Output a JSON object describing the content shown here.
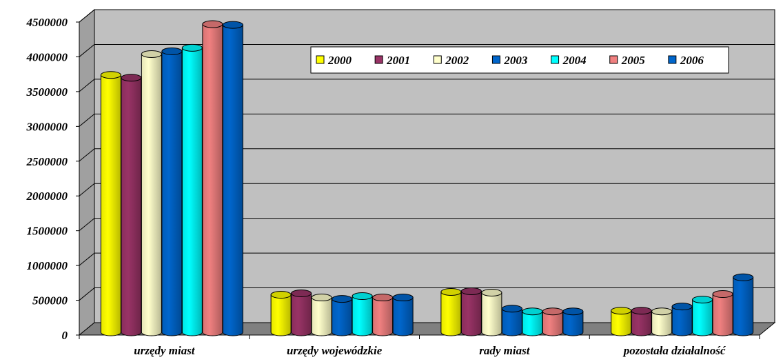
{
  "chart_data": {
    "type": "bar",
    "style": "3d-cylinder",
    "categories": [
      "urzędy miast",
      "urzędy wojewódzkie",
      "rady miast",
      "pozostała działalność"
    ],
    "series": [
      {
        "name": "2000",
        "color": "#FFFF00",
        "values": [
          3700000,
          540000,
          580000,
          310000
        ]
      },
      {
        "name": "2001",
        "color": "#993366",
        "values": [
          3660000,
          560000,
          590000,
          310000
        ]
      },
      {
        "name": "2002",
        "color": "#FFFFCC",
        "values": [
          4000000,
          500000,
          570000,
          300000
        ]
      },
      {
        "name": "2003",
        "color": "#0066CC",
        "values": [
          4040000,
          480000,
          340000,
          370000
        ]
      },
      {
        "name": "2004",
        "color": "#00FFFF",
        "values": [
          4090000,
          520000,
          300000,
          470000
        ]
      },
      {
        "name": "2005",
        "color": "#F08080",
        "values": [
          4430000,
          500000,
          300000,
          550000
        ]
      },
      {
        "name": "2006",
        "color": "#0066CC",
        "values": [
          4420000,
          500000,
          300000,
          790000
        ]
      }
    ],
    "y_ticks": [
      "0",
      "500000",
      "1000000",
      "1500000",
      "2000000",
      "2500000",
      "3000000",
      "3500000",
      "4000000",
      "4500000"
    ],
    "ylim": [
      0,
      4500000
    ],
    "grid": true,
    "legend": "top-right-inside",
    "colors": {
      "wall": "#C0C0C0",
      "floor": "#808080",
      "grid": "#000000",
      "text": "#000000"
    }
  }
}
